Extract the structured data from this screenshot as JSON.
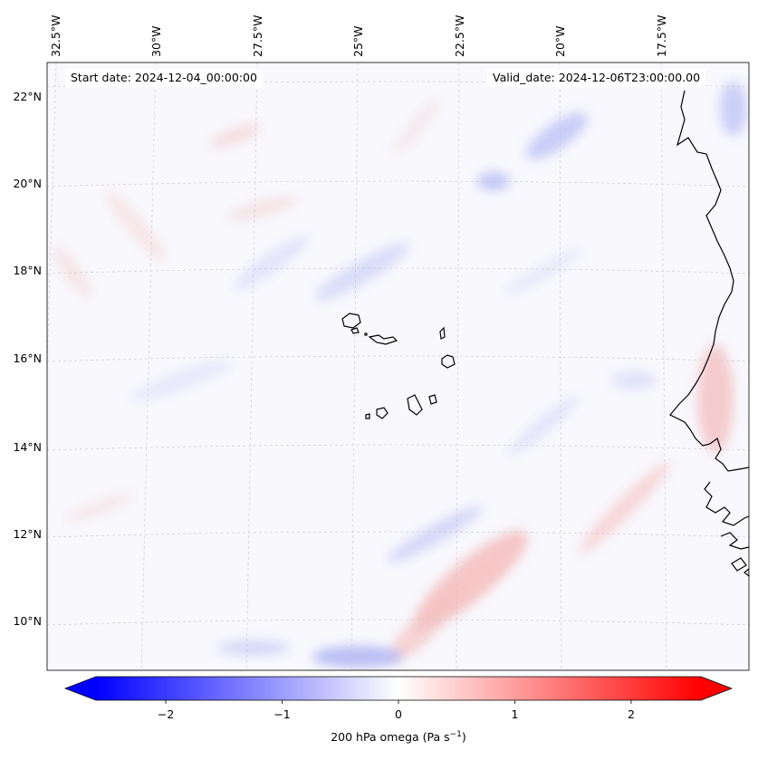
{
  "map": {
    "start_date_text": "Start date: 2024-12-04_00:00:00",
    "valid_date_text": "Valid_date: 2024-12-06T23:00:00.00",
    "lon_labels": [
      "32.5°W",
      "30°W",
      "27.5°W",
      "25°W",
      "22.5°W",
      "20°W",
      "17.5°W"
    ],
    "lat_labels": [
      "22°N",
      "20°N",
      "18°N",
      "16°N",
      "14°N",
      "12°N",
      "10°N"
    ],
    "gridlines": "dashed, light grey",
    "field": "200 hPa omega"
  },
  "colorbar": {
    "label_main": "200 hPa omega (Pa s",
    "label_exp": "−1",
    "label_close": ")",
    "ticks": [
      "−2",
      "−1",
      "0",
      "1",
      "2"
    ],
    "range": [
      -2.6,
      2.6
    ],
    "colormap": "bwr",
    "extend": "both",
    "low_color": "#0000ff",
    "mid_color": "#ffffff",
    "high_color": "#ff0000"
  }
}
